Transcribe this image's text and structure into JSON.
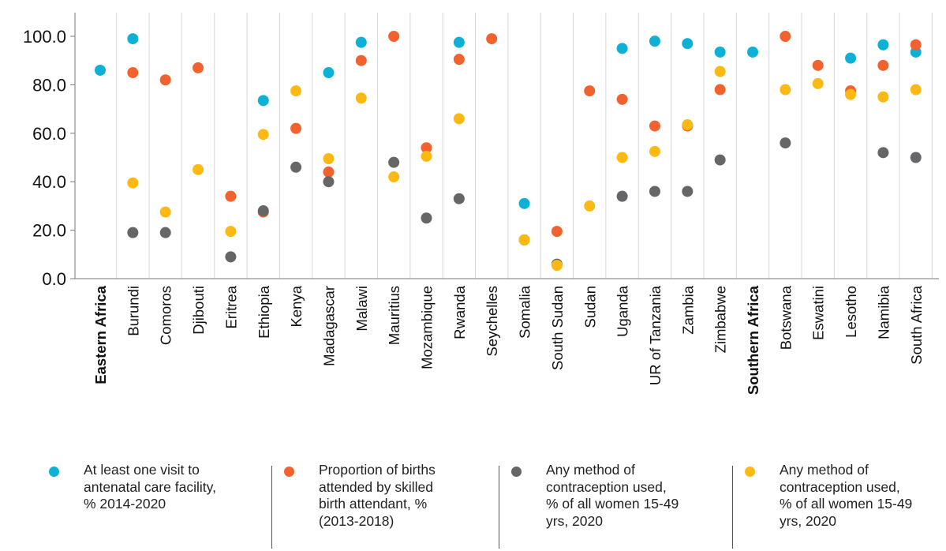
{
  "chart_data": {
    "type": "scatter",
    "categories": [
      "Eastern Africa",
      "Burundi",
      "Comoros",
      "Djibouti",
      "Eritrea",
      "Ethiopia",
      "Kenya",
      "Madagascar",
      "Malawi",
      "Mauritius",
      "Mozambique",
      "Rwanda",
      "Seychelles",
      "Somalia",
      "South Sudan",
      "Sudan",
      "Uganda",
      "UR of Tanzania",
      "Zambia",
      "Zimbabwe",
      "Southern Africa",
      "Botswana",
      "Eswatini",
      "Lesotho",
      "Namibia",
      "South Africa"
    ],
    "bold_categories": [
      "Eastern Africa",
      "Southern Africa"
    ],
    "yticks": [
      "0.0",
      "20.0",
      "40.0",
      "60.0",
      "80.0",
      "100.0"
    ],
    "ylim": [
      0,
      100
    ],
    "grid": "vertical",
    "series": [
      {
        "name": "At least one visit to antenatal care facility, % 2014-2020",
        "color": "#0eb1d6",
        "values": [
          86,
          99,
          null,
          null,
          null,
          73.5,
          null,
          85,
          97.5,
          null,
          null,
          97.5,
          null,
          31,
          null,
          null,
          95,
          98,
          97,
          93.5,
          93.5,
          null,
          null,
          91,
          96.5,
          93.5
        ]
      },
      {
        "name": "Proportion of births attended by skilled birth attendant, % (2013-2018)",
        "color": "#f2622e",
        "values": [
          null,
          85,
          82,
          87,
          34,
          27.5,
          62,
          44,
          90,
          100,
          54,
          90.5,
          99,
          null,
          19.5,
          77.5,
          74,
          63,
          63,
          78,
          null,
          100,
          88,
          77.5,
          88,
          96.5
        ]
      },
      {
        "name": "Any method of contraception used, % of all women 15-49 yrs, 2020",
        "color": "#666669",
        "values": [
          null,
          19,
          19,
          null,
          9,
          28,
          46,
          40,
          null,
          48,
          25,
          33,
          null,
          16,
          6,
          null,
          34,
          36,
          36,
          49,
          null,
          56,
          null,
          null,
          52,
          50
        ]
      },
      {
        "name": "Any method of contraception used, % of all women 15-49 yrs, 2020",
        "color": "#fdb913",
        "values": [
          null,
          39.5,
          27.5,
          45,
          19.5,
          59.5,
          77.5,
          49.5,
          74.5,
          42,
          50.5,
          66,
          null,
          16,
          5.5,
          30,
          50,
          52.5,
          63.5,
          85.5,
          null,
          78,
          80.5,
          76,
          75,
          78
        ]
      }
    ]
  },
  "legend": [
    {
      "text": "At least one visit to\nantenatal care facility,\n% 2014-2020",
      "color": "#0eb1d6"
    },
    {
      "text": "Proportion of births\nattended by skilled\nbirth attendant, %\n(2013-2018)",
      "color": "#f2622e"
    },
    {
      "text": "Any method of\ncontraception used,\n% of all women 15-49\nyrs, 2020",
      "color": "#666669"
    },
    {
      "text": "Any method of\ncontraception used,\n% of all women 15-49\nyrs, 2020",
      "color": "#fdb913"
    }
  ]
}
